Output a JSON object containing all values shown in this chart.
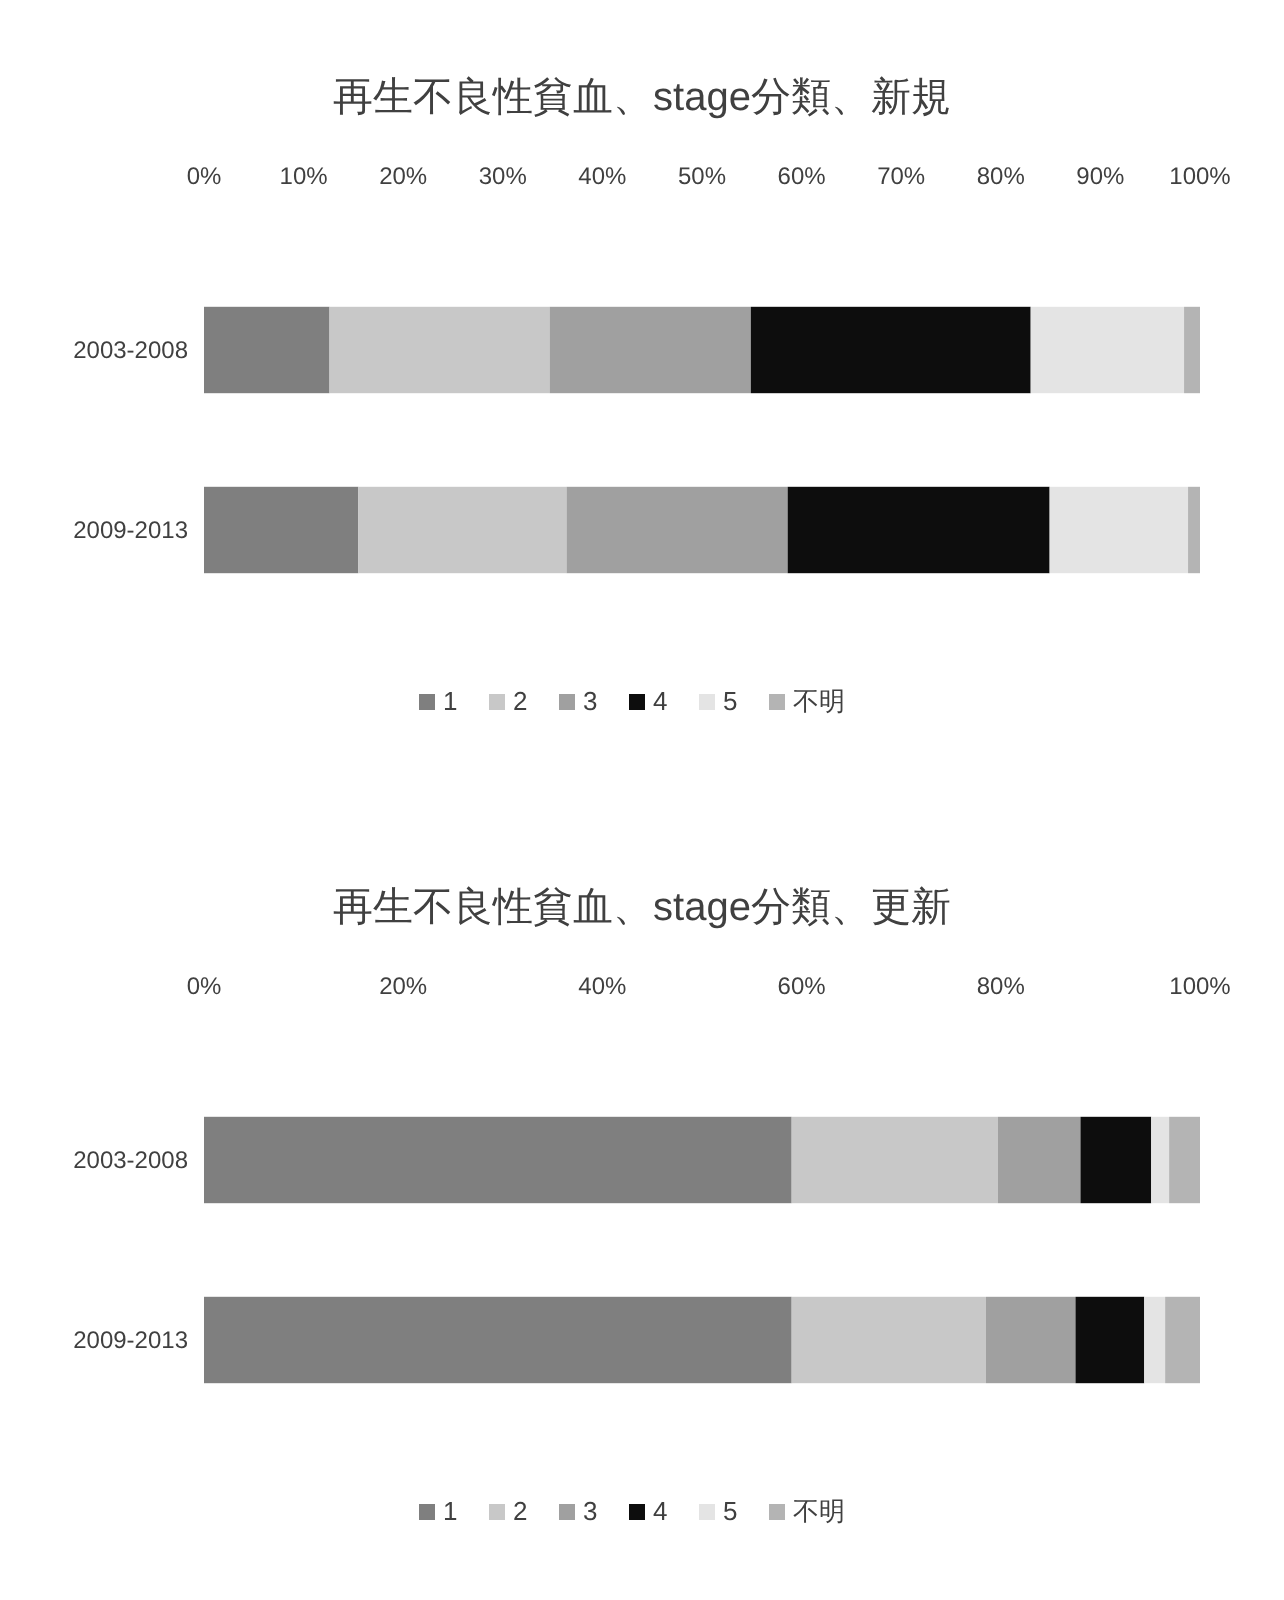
{
  "chart_data": [
    {
      "type": "bar",
      "title": "再生不良性貧血、stage分類、新規",
      "orientation": "horizontal",
      "stacked": true,
      "legend": "bottom",
      "categories": [
        "2003-2008",
        "2009-2013"
      ],
      "xlim": [
        0,
        100
      ],
      "xticks": [
        {
          "value": 0,
          "label": "0%"
        },
        {
          "value": 10,
          "label": "10%"
        },
        {
          "value": 20,
          "label": "20%"
        },
        {
          "value": 30,
          "label": "30%"
        },
        {
          "value": 40,
          "label": "40%"
        },
        {
          "value": 50,
          "label": "50%"
        },
        {
          "value": 60,
          "label": "60%"
        },
        {
          "value": 70,
          "label": "70%"
        },
        {
          "value": 80,
          "label": "80%"
        },
        {
          "value": 90,
          "label": "90%"
        },
        {
          "value": 100,
          "label": "100%"
        }
      ],
      "series": [
        {
          "name": "1",
          "color": "#7f7f7f",
          "values": [
            12.6,
            15.5
          ]
        },
        {
          "name": "2",
          "color": "#c8c8c8",
          "values": [
            22.1,
            20.9
          ]
        },
        {
          "name": "3",
          "color": "#a0a0a0",
          "values": [
            20.2,
            22.2
          ]
        },
        {
          "name": "4",
          "color": "#0d0d0d",
          "values": [
            28.1,
            26.3
          ]
        },
        {
          "name": "5",
          "color": "#e4e4e4",
          "values": [
            15.4,
            13.9
          ]
        },
        {
          "name": "不明",
          "color": "#b4b4b4",
          "values": [
            1.6,
            1.2
          ]
        }
      ]
    },
    {
      "type": "bar",
      "title": "再生不良性貧血、stage分類、更新",
      "orientation": "horizontal",
      "stacked": true,
      "legend": "bottom",
      "categories": [
        "2003-2008",
        "2009-2013"
      ],
      "xlim": [
        0,
        100
      ],
      "xticks": [
        {
          "value": 0,
          "label": "0%"
        },
        {
          "value": 20,
          "label": "20%"
        },
        {
          "value": 40,
          "label": "40%"
        },
        {
          "value": 60,
          "label": "60%"
        },
        {
          "value": 80,
          "label": "80%"
        },
        {
          "value": 100,
          "label": "100%"
        }
      ],
      "series": [
        {
          "name": "1",
          "color": "#7f7f7f",
          "values": [
            59.0,
            59.0
          ]
        },
        {
          "name": "2",
          "color": "#c8c8c8",
          "values": [
            20.7,
            19.5
          ]
        },
        {
          "name": "3",
          "color": "#a0a0a0",
          "values": [
            8.3,
            9.0
          ]
        },
        {
          "name": "4",
          "color": "#0d0d0d",
          "values": [
            7.1,
            6.9
          ]
        },
        {
          "name": "5",
          "color": "#e4e4e4",
          "values": [
            1.8,
            2.1
          ]
        },
        {
          "name": "不明",
          "color": "#b4b4b4",
          "values": [
            3.1,
            3.5
          ]
        }
      ]
    }
  ]
}
